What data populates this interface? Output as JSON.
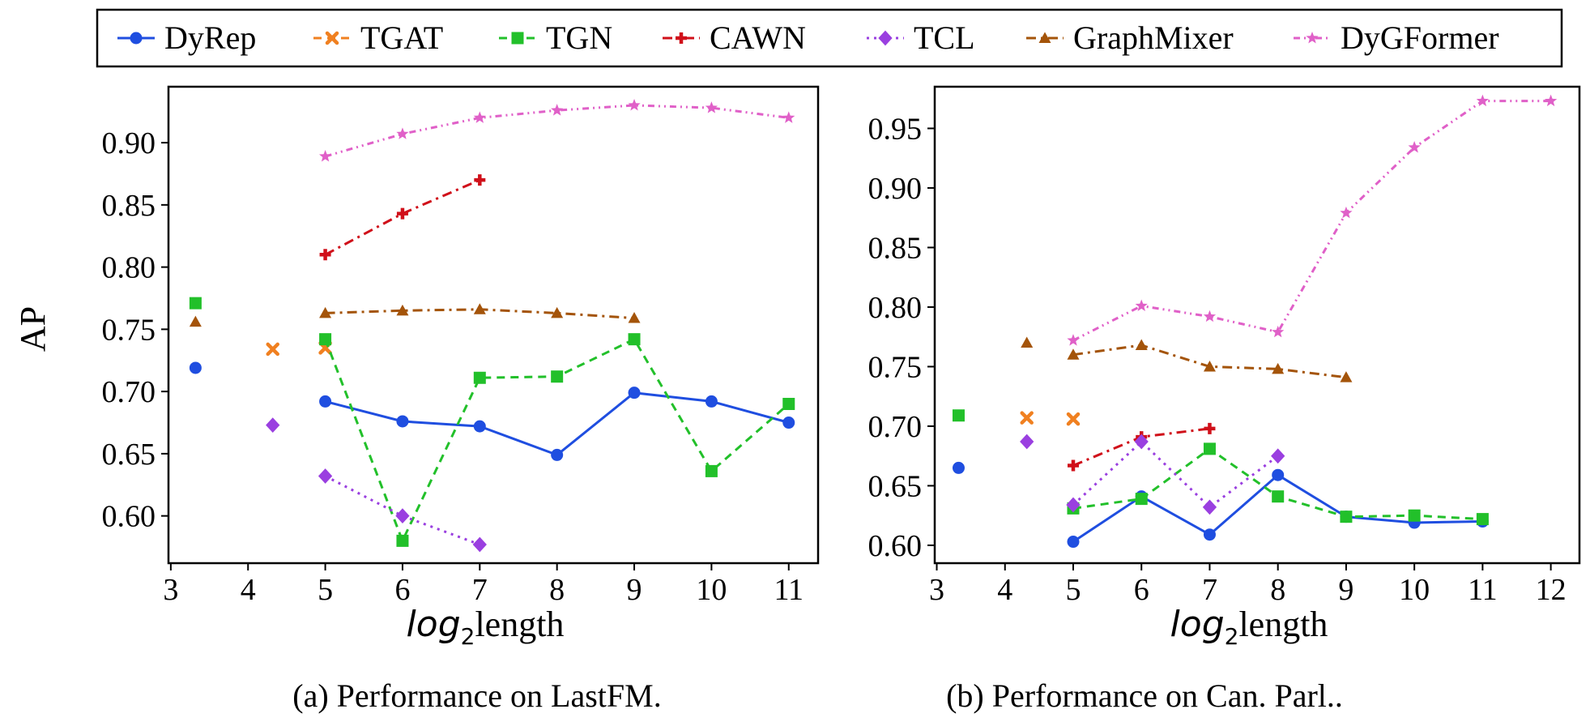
{
  "legend": [
    {
      "name": "DyRep",
      "color": "#1f4ee0",
      "marker": "circle",
      "dash": "solid"
    },
    {
      "name": "TGAT",
      "color": "#f08020",
      "marker": "x",
      "dash": "dash"
    },
    {
      "name": "TGN",
      "color": "#22c02a",
      "marker": "square",
      "dash": "dash"
    },
    {
      "name": "CAWN",
      "color": "#d0101a",
      "marker": "plus",
      "dash": "dashdot"
    },
    {
      "name": "TCL",
      "color": "#9a3fe0",
      "marker": "diamond",
      "dash": "dot"
    },
    {
      "name": "GraphMixer",
      "color": "#a4540a",
      "marker": "triangle",
      "dash": "dashdot"
    },
    {
      "name": "DyGFormer",
      "color": "#e060c8",
      "marker": "star",
      "dash": "dashdotdot"
    }
  ],
  "chart_data": [
    {
      "type": "line",
      "title": "(a) Performance on LastFM.",
      "xlabel_italic": "log",
      "xlabel_sub": "2",
      "xlabel_rest": "length",
      "ylabel": "AP",
      "xlim": [
        2.97,
        11.38
      ],
      "ylim": [
        0.562,
        0.945
      ],
      "xticks": [
        3,
        4,
        5,
        6,
        7,
        8,
        9,
        10,
        11
      ],
      "xtick_labels": [
        "3",
        "4",
        "5",
        "6",
        "7",
        "8",
        "9",
        "10",
        "11"
      ],
      "yticks": [
        0.6,
        0.65,
        0.7,
        0.75,
        0.8,
        0.85,
        0.9
      ],
      "ytick_labels": [
        "0.60",
        "0.65",
        "0.70",
        "0.75",
        "0.80",
        "0.85",
        "0.90"
      ],
      "series": [
        {
          "name": "DyRep",
          "single": [
            3.32,
            0.719
          ],
          "x": [
            5,
            6,
            7,
            8,
            9,
            10,
            11
          ],
          "y": [
            0.692,
            0.676,
            0.672,
            0.649,
            0.699,
            0.692,
            0.675
          ]
        },
        {
          "name": "TGAT",
          "single": [
            4.32,
            0.734
          ],
          "x": [
            5
          ],
          "y": [
            0.735
          ]
        },
        {
          "name": "TGN",
          "single": [
            3.32,
            0.771
          ],
          "x": [
            5,
            6,
            7,
            8,
            9,
            10,
            11
          ],
          "y": [
            0.742,
            0.58,
            0.711,
            0.712,
            0.742,
            0.636,
            0.69
          ]
        },
        {
          "name": "CAWN",
          "single": null,
          "x": [
            5,
            6,
            7
          ],
          "y": [
            0.81,
            0.843,
            0.87
          ]
        },
        {
          "name": "TCL",
          "single": [
            4.32,
            0.673
          ],
          "x": [
            5,
            6,
            7
          ],
          "y": [
            0.632,
            0.6,
            0.577
          ]
        },
        {
          "name": "GraphMixer",
          "single": [
            3.32,
            0.756
          ],
          "x": [
            5,
            6,
            7,
            8,
            9
          ],
          "y": [
            0.763,
            0.765,
            0.766,
            0.763,
            0.759
          ]
        },
        {
          "name": "DyGFormer",
          "single": null,
          "x": [
            5,
            6,
            7,
            8,
            9,
            10,
            11
          ],
          "y": [
            0.889,
            0.907,
            0.92,
            0.926,
            0.93,
            0.928,
            0.92
          ]
        }
      ]
    },
    {
      "type": "line",
      "title": "(b) Performance on Can. Parl..",
      "xlabel_italic": "log",
      "xlabel_sub": "2",
      "xlabel_rest": "length",
      "ylabel": "",
      "xlim": [
        2.97,
        12.42
      ],
      "ylim": [
        0.585,
        0.985
      ],
      "xticks": [
        3,
        4,
        5,
        6,
        7,
        8,
        9,
        10,
        11,
        12
      ],
      "xtick_labels": [
        "3",
        "4",
        "5",
        "6",
        "7",
        "8",
        "9",
        "10",
        "11",
        "12"
      ],
      "yticks": [
        0.6,
        0.65,
        0.7,
        0.75,
        0.8,
        0.85,
        0.9,
        0.95
      ],
      "ytick_labels": [
        "0.60",
        "0.65",
        "0.70",
        "0.75",
        "0.80",
        "0.85",
        "0.90",
        "0.95"
      ],
      "series": [
        {
          "name": "DyRep",
          "single": [
            3.32,
            0.665
          ],
          "x": [
            5,
            6,
            7,
            8,
            9,
            10,
            11
          ],
          "y": [
            0.603,
            0.641,
            0.609,
            0.659,
            0.624,
            0.619,
            0.62
          ]
        },
        {
          "name": "TGAT",
          "single": [
            4.32,
            0.707
          ],
          "x": [
            5
          ],
          "y": [
            0.706
          ]
        },
        {
          "name": "TGN",
          "single": [
            3.32,
            0.709
          ],
          "x": [
            5,
            6,
            7,
            8,
            9,
            10,
            11
          ],
          "y": [
            0.631,
            0.639,
            0.681,
            0.641,
            0.624,
            0.625,
            0.622
          ]
        },
        {
          "name": "CAWN",
          "single": null,
          "x": [
            5,
            6,
            7
          ],
          "y": [
            0.667,
            0.691,
            0.698
          ]
        },
        {
          "name": "TCL",
          "single": [
            4.32,
            0.687
          ],
          "x": [
            5,
            6,
            7,
            8
          ],
          "y": [
            0.634,
            0.687,
            0.632,
            0.675
          ]
        },
        {
          "name": "GraphMixer",
          "single": [
            4.32,
            0.77
          ],
          "x": [
            5,
            6,
            7,
            8,
            9
          ],
          "y": [
            0.76,
            0.768,
            0.75,
            0.748,
            0.741
          ]
        },
        {
          "name": "DyGFormer",
          "single": null,
          "x": [
            5,
            6,
            7,
            8,
            9,
            10,
            11,
            12
          ],
          "y": [
            0.772,
            0.801,
            0.792,
            0.779,
            0.879,
            0.934,
            0.973,
            0.973
          ]
        }
      ]
    }
  ]
}
